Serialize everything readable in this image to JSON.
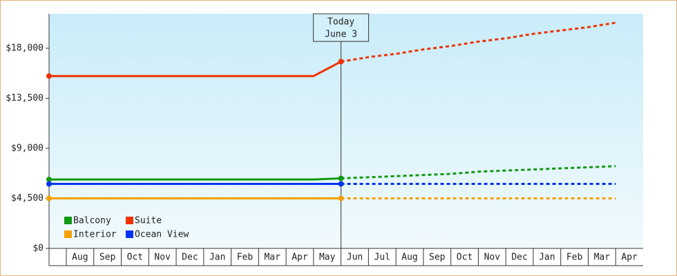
{
  "chart_data": {
    "type": "line",
    "categories": [
      null,
      "Aug",
      "Sep",
      "Oct",
      "Nov",
      "Dec",
      "Jan",
      "Feb",
      "Mar",
      "Apr",
      "May",
      "Jun",
      "Jul",
      "Aug",
      "Sep",
      "Oct",
      "Nov",
      "Dec",
      "Jan",
      "Feb",
      "Mar",
      "Apr"
    ],
    "today": [
      "Today",
      "June 3"
    ],
    "ylim": [
      0,
      21100
    ],
    "yticks": [
      {
        "value": 0,
        "label": "$0"
      },
      {
        "value": 4500,
        "label": "$4,500"
      },
      {
        "value": 9000,
        "label": "$9,000"
      },
      {
        "value": 13500,
        "label": "$13,500"
      },
      {
        "value": 18000,
        "label": "$18,000"
      }
    ],
    "grid": false,
    "legend": "bottom-left",
    "series": [
      {
        "name": "Balcony",
        "color": "#119911",
        "values": [
          6200,
          6200,
          6200,
          6200,
          6200,
          6200,
          6200,
          6200,
          6200,
          6200,
          6200,
          6300,
          null,
          null,
          null,
          null,
          null,
          null,
          null,
          null,
          null,
          null
        ],
        "forecast": [
          null,
          null,
          null,
          null,
          null,
          null,
          null,
          null,
          null,
          null,
          null,
          6300,
          6400,
          6500,
          6600,
          6700,
          6900,
          7000,
          7100,
          7200,
          7300,
          7400
        ]
      },
      {
        "name": "Suite",
        "color": "#ee3300",
        "values": [
          15500,
          15500,
          15500,
          15500,
          15500,
          15500,
          15500,
          15500,
          15500,
          15500,
          15500,
          16800,
          null,
          null,
          null,
          null,
          null,
          null,
          null,
          null,
          null,
          null
        ],
        "forecast": [
          null,
          null,
          null,
          null,
          null,
          null,
          null,
          null,
          null,
          null,
          null,
          16800,
          17200,
          17500,
          17900,
          18200,
          18600,
          18900,
          19300,
          19600,
          19900,
          20300
        ]
      },
      {
        "name": "Interior",
        "color": "#f5a000",
        "values": [
          4500,
          4500,
          4500,
          4500,
          4500,
          4500,
          4500,
          4500,
          4500,
          4500,
          4500,
          4500,
          null,
          null,
          null,
          null,
          null,
          null,
          null,
          null,
          null,
          null
        ],
        "forecast": [
          null,
          null,
          null,
          null,
          null,
          null,
          null,
          null,
          null,
          null,
          null,
          4500,
          4500,
          4500,
          4500,
          4500,
          4500,
          4500,
          4500,
          4500,
          4500,
          4500
        ]
      },
      {
        "name": "Ocean View",
        "color": "#0033ee",
        "values": [
          5800,
          5800,
          5800,
          5800,
          5800,
          5800,
          5800,
          5800,
          5800,
          5800,
          5800,
          5800,
          null,
          null,
          null,
          null,
          null,
          null,
          null,
          null,
          null,
          null
        ],
        "forecast": [
          null,
          null,
          null,
          null,
          null,
          null,
          null,
          null,
          null,
          null,
          null,
          5800,
          5800,
          5800,
          5800,
          5800,
          5800,
          5800,
          5800,
          5800,
          5800,
          5800
        ]
      }
    ]
  }
}
